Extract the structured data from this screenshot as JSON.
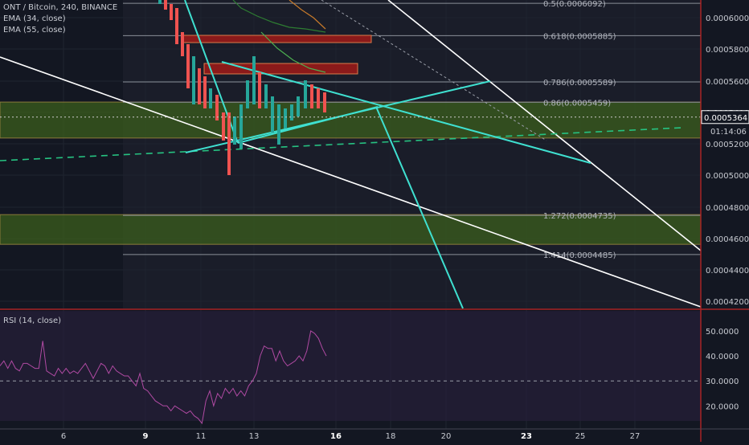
{
  "header": {
    "symbol_line": "ONT / Bitcoin, 240, BINANCE",
    "indicators": [
      "EMA (34, close)",
      "EMA (55, close)"
    ]
  },
  "rsi_panel": {
    "label": "RSI (14, close)"
  },
  "colors": {
    "background": "#131722",
    "grid": "#1f2430",
    "zone_fill": "#3b5e1c",
    "resistance_box": "#8b1a1a",
    "trendline_cyan": "#3fe0d0",
    "trendline_white": "#ffffff",
    "ema34": "#4caf50",
    "ema55": "#c77a2a",
    "rsi_line": "#b04aa3",
    "rsi_band": "#2a1f3d",
    "panel_divider": "#a82424",
    "dashed_green": "#26c281"
  },
  "chart_data": [
    {
      "type": "line",
      "title": "",
      "x_ticks": [
        "6",
        "9",
        "11",
        "13",
        "16",
        "18",
        "20",
        "23",
        "25",
        "27"
      ],
      "y_ticks": [
        "0.0006000",
        "0.0005800",
        "0.0005600",
        "0.0005400",
        "0.0005200",
        "0.0005000",
        "0.0004800",
        "0.0004600",
        "0.0004400",
        "0.0004200"
      ],
      "ylim": [
        0.00041,
        0.00062
      ],
      "current_price": "0.0005364",
      "countdown": "01:14:06",
      "fib_levels": [
        {
          "label": "0.5(0.0006092)",
          "value": 0.0006092
        },
        {
          "label": "0.618(0.0005885)",
          "value": 0.0005885
        },
        {
          "label": "0.786(0.0005589)",
          "value": 0.0005589
        },
        {
          "label": "0.86(0.0005459)",
          "value": 0.0005459
        },
        {
          "label": "1.272(0.0004735)",
          "value": 0.0004735
        },
        {
          "label": "1.414(0.0004485)",
          "value": 0.0004485
        }
      ],
      "zones": [
        {
          "name": "upper-support-zone",
          "from": 0.000523,
          "to": 0.000546
        },
        {
          "name": "lower-support-zone",
          "from": 0.000455,
          "to": 0.000474
        }
      ]
    },
    {
      "type": "line",
      "title": "RSI (14, close)",
      "y_ticks": [
        "50.0000",
        "40.0000",
        "30.0000",
        "20.0000"
      ],
      "ylim": [
        12,
        59
      ],
      "reference_level": 30,
      "series": [
        {
          "values": [
            36,
            38,
            35,
            38,
            35,
            34,
            37,
            37,
            36,
            35,
            35,
            46,
            34,
            33,
            32,
            35,
            33,
            35,
            33,
            34,
            33,
            35,
            37,
            34,
            31,
            34,
            37,
            36,
            33,
            36,
            34,
            33,
            32,
            32,
            30,
            28,
            33,
            27,
            26,
            24,
            22,
            21,
            20,
            20,
            18,
            20,
            19,
            18,
            17,
            18,
            16,
            15,
            13,
            22,
            26,
            20,
            25,
            23,
            27,
            25,
            27,
            24,
            26,
            24,
            28,
            30,
            33,
            40,
            44,
            43,
            43,
            38,
            42,
            38,
            36,
            37,
            38,
            40,
            38,
            42,
            50,
            49,
            47,
            43,
            40
          ]
        }
      ]
    }
  ]
}
